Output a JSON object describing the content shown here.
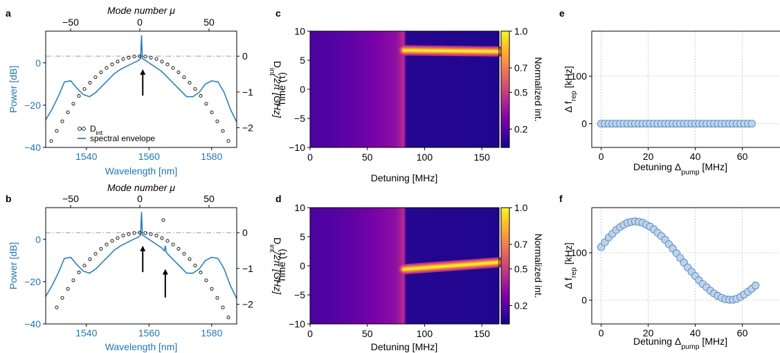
{
  "colors": {
    "accent": "#1f77b4",
    "envelope": "#2b7fb8",
    "dint": "#000000",
    "guide": "#b3b3b3",
    "marker_fill": "#bcd3ec",
    "marker_edge": "#4a7fb5",
    "grid": "#b0b0b0"
  },
  "panels": {
    "a": {
      "letter": "a"
    },
    "b": {
      "letter": "b"
    },
    "c": {
      "letter": "c"
    },
    "d": {
      "letter": "d"
    },
    "e": {
      "letter": "e"
    },
    "f": {
      "letter": "f"
    }
  },
  "chart_data": [
    {
      "id": "a",
      "type": "line",
      "xlabel": "Wavelength [nm]",
      "x2label": "Mode number μ",
      "ylabel": "Power [dB]",
      "y2label": "D_int/2π [GHz]",
      "xlim": [
        1527,
        1588
      ],
      "xticks": [
        1540,
        1560,
        1580
      ],
      "x2lim": [
        -68,
        70
      ],
      "x2ticks": [
        -50,
        0,
        50
      ],
      "ylim": [
        -40,
        15
      ],
      "yticks": [
        -40,
        -20,
        0
      ],
      "y2lim": [
        -2.55,
        0.7
      ],
      "y2ticks": [
        -2,
        -1,
        0
      ],
      "legend": {
        "placement": "lower-left",
        "entries": [
          "D_int",
          "spectral envelope"
        ]
      },
      "series": [
        {
          "name": "spectral envelope",
          "axis": "power",
          "x": [
            1527,
            1529,
            1531,
            1533,
            1535,
            1537,
            1539,
            1541,
            1543,
            1545,
            1547,
            1549,
            1551,
            1553,
            1555,
            1556.5,
            1557.3,
            1557.6,
            1557.9,
            1558.5,
            1560,
            1562,
            1564,
            1566,
            1568,
            1570,
            1572,
            1574,
            1576,
            1578,
            1580,
            1582,
            1584,
            1586,
            1588
          ],
          "y": [
            -27,
            -22,
            -16,
            -9,
            -8.5,
            -12,
            -15,
            -16,
            -14,
            -11,
            -8,
            -5,
            -3,
            -1.5,
            0,
            1,
            2,
            13,
            2,
            1.5,
            0,
            -2,
            -4,
            -7,
            -10,
            -13,
            -16,
            -16,
            -14,
            -10,
            -8.5,
            -9,
            -14,
            -22,
            -28
          ]
        },
        {
          "name": "D_int",
          "axis": "dint",
          "marker": "circle",
          "x": [
            -68,
            -64,
            -60,
            -56,
            -52,
            -48,
            -44,
            -40,
            -36,
            -32,
            -28,
            -24,
            -20,
            -16,
            -12,
            -8,
            -4,
            0,
            4,
            8,
            12,
            16,
            20,
            24,
            28,
            32,
            36,
            40,
            44,
            48,
            52,
            56,
            60,
            64,
            68
          ],
          "y": [
            -2.68,
            -2.37,
            -2.09,
            -1.82,
            -1.57,
            -1.33,
            -1.11,
            -0.92,
            -0.74,
            -0.59,
            -0.45,
            -0.33,
            -0.23,
            -0.15,
            -0.08,
            -0.04,
            -0.01,
            0.0,
            -0.01,
            -0.04,
            -0.08,
            -0.15,
            -0.23,
            -0.33,
            -0.45,
            -0.59,
            -0.74,
            -0.92,
            -1.11,
            -1.33,
            -1.57,
            -1.82,
            -2.09,
            -2.37,
            -2.68
          ]
        }
      ],
      "guide_dint": 0,
      "arrows_wavelength": [
        1558
      ]
    },
    {
      "id": "b",
      "type": "line",
      "xlabel": "Wavelength [nm]",
      "x2label": "Mode number μ",
      "ylabel": "Power [dB]",
      "y2label": "D_int/2π [GHz]",
      "xlim": [
        1527,
        1588
      ],
      "xticks": [
        1540,
        1560,
        1580
      ],
      "x2lim": [
        -68,
        70
      ],
      "x2ticks": [
        -50,
        0,
        50
      ],
      "ylim": [
        -40,
        15
      ],
      "yticks": [
        -40,
        -20,
        0
      ],
      "y2lim": [
        -2.55,
        0.7
      ],
      "y2ticks": [
        -2,
        -1,
        0
      ],
      "series": [
        {
          "name": "spectral envelope",
          "axis": "power",
          "x": [
            1527,
            1529,
            1531,
            1533,
            1535,
            1537,
            1539,
            1541,
            1543,
            1545,
            1547,
            1549,
            1551,
            1553,
            1555,
            1556.5,
            1557.3,
            1557.6,
            1557.9,
            1558.5,
            1560,
            1562,
            1564,
            1564.9,
            1565.2,
            1565.5,
            1566,
            1568,
            1570,
            1572,
            1574,
            1576,
            1578,
            1580,
            1582,
            1584,
            1586,
            1588
          ],
          "y": [
            -27,
            -22,
            -16,
            -9,
            -8.5,
            -12,
            -15,
            -16,
            -14,
            -11,
            -8,
            -5,
            -3,
            -1.5,
            0,
            1,
            2,
            13,
            2,
            1.5,
            0,
            -2,
            -4,
            -5.5,
            -3,
            -6,
            -7,
            -10,
            -13,
            -16,
            -16,
            -14,
            -10,
            -8.5,
            -9,
            -14,
            -22,
            -28
          ]
        },
        {
          "name": "D_int",
          "axis": "dint",
          "marker": "circle",
          "x": [
            -60,
            -56,
            -52,
            -48,
            -44,
            -40,
            -36,
            -32,
            -28,
            -24,
            -20,
            -16,
            -12,
            -8,
            -4,
            0,
            4,
            8,
            12,
            16,
            20,
            24,
            28,
            32,
            36,
            40,
            44,
            48,
            52,
            56,
            60,
            64
          ],
          "y": [
            -2.09,
            -1.82,
            -1.57,
            -1.33,
            -1.11,
            -0.92,
            -0.74,
            -0.59,
            -0.45,
            -0.33,
            -0.23,
            -0.15,
            -0.08,
            -0.04,
            -0.01,
            0.0,
            -0.01,
            -0.04,
            -0.08,
            -0.15,
            -0.23,
            -0.33,
            -0.45,
            -0.59,
            -0.74,
            -0.92,
            -1.11,
            -1.33,
            -1.57,
            -1.82,
            -2.09,
            -2.37
          ]
        }
      ],
      "outlier_dint": {
        "x": 17,
        "y": 0.35
      },
      "guide_dint": 0,
      "arrows_wavelength": [
        1558,
        1565.2
      ]
    },
    {
      "id": "c",
      "type": "heatmap",
      "xlabel": "Detuning [MHz]",
      "ylabel": "Time (τ)",
      "xlim": [
        0,
        165
      ],
      "xticks": [
        0,
        50,
        100,
        150
      ],
      "ylim": [
        -10,
        10
      ],
      "yticks": [
        -10,
        -5,
        0,
        5,
        10
      ],
      "colorbar": {
        "label": "Normalized int.",
        "ticks": [
          1.0,
          0.7,
          0.5,
          0.2
        ],
        "tick_labels": [
          "1.0",
          "0.7",
          "0.5",
          "0.2"
        ]
      },
      "background_profile": {
        "detuning": [
          0,
          20,
          40,
          60,
          75,
          82,
          84,
          165
        ],
        "level": [
          0.13,
          0.15,
          0.19,
          0.25,
          0.3,
          0.42,
          0.05,
          0.04
        ]
      },
      "soliton": {
        "start": 82,
        "end": 165,
        "time_start": 6.7,
        "time_end": 6.5,
        "width": 0.55
      }
    },
    {
      "id": "d",
      "type": "heatmap",
      "xlabel": "Detuning [MHz]",
      "ylabel": "Time (τ)",
      "xlim": [
        0,
        165
      ],
      "xticks": [
        0,
        50,
        100,
        150
      ],
      "ylim": [
        -10,
        10
      ],
      "yticks": [
        -10,
        -5,
        0,
        5,
        10
      ],
      "colorbar": {
        "label": "Normalized int.",
        "ticks": [
          1.0,
          0.7,
          0.5,
          0.2
        ],
        "tick_labels": [
          "1.0",
          "0.7",
          "0.5",
          "0.2"
        ]
      },
      "background_profile": {
        "detuning": [
          0,
          20,
          40,
          60,
          75,
          82,
          84,
          165
        ],
        "level": [
          0.13,
          0.15,
          0.19,
          0.25,
          0.3,
          0.42,
          0.05,
          0.04
        ]
      },
      "soliton": {
        "start": 82,
        "end": 165,
        "time_start": -0.6,
        "time_end": 0.6,
        "width": 0.55
      }
    },
    {
      "id": "e",
      "type": "scatter",
      "xlabel": "Detuning Δ_pump [MHz]",
      "ylabel": "Δ f_rep [kHz]",
      "xlim": [
        -4,
        76
      ],
      "xticks": [
        0,
        20,
        40,
        60
      ],
      "ylim": [
        -50,
        195
      ],
      "yticks": [
        0,
        100
      ],
      "grid": true,
      "x": [
        0,
        1.6,
        3.2,
        4.8,
        6.4,
        8.0,
        9.6,
        11.2,
        12.8,
        14.4,
        16.0,
        17.6,
        19.2,
        20.8,
        22.4,
        24.0,
        25.6,
        27.2,
        28.8,
        30.4,
        32.0,
        33.6,
        35.2,
        36.8,
        38.4,
        40.0,
        41.6,
        43.2,
        44.8,
        46.4,
        48.0,
        49.6,
        51.2,
        52.8,
        54.4,
        56.0,
        57.6,
        59.2,
        60.8,
        62.4,
        64.0
      ],
      "y": [
        0,
        0,
        0,
        0,
        0,
        0,
        0,
        0,
        0,
        0,
        0,
        0,
        0,
        0,
        0,
        0,
        0,
        0,
        0,
        0,
        0,
        0,
        0,
        0,
        0,
        0,
        0,
        0,
        0,
        0,
        0,
        0,
        0,
        0,
        0,
        0,
        0,
        0,
        0,
        0,
        0
      ]
    },
    {
      "id": "f",
      "type": "scatter",
      "xlabel": "Detuning Δ_pump [MHz]",
      "ylabel": "Δ f_rep [kHz]",
      "xlim": [
        -4,
        76
      ],
      "xticks": [
        0,
        20,
        40,
        60
      ],
      "ylim": [
        -50,
        195
      ],
      "yticks": [
        0,
        100
      ],
      "grid": true,
      "x": [
        0,
        1.6,
        3.2,
        4.8,
        6.4,
        8.0,
        9.6,
        11.2,
        12.8,
        14.4,
        16.0,
        17.6,
        19.2,
        20.8,
        22.4,
        24.0,
        25.6,
        27.2,
        28.8,
        30.4,
        32.0,
        33.6,
        35.2,
        36.8,
        38.4,
        40.0,
        41.6,
        43.2,
        44.8,
        46.4,
        48.0,
        49.6,
        51.2,
        52.8,
        54.4,
        56.0,
        57.6,
        59.2,
        60.8,
        62.4,
        64.0,
        65.6
      ],
      "y": [
        112,
        122,
        132,
        140,
        148,
        154,
        159,
        163,
        165,
        166,
        165,
        163,
        159,
        155,
        149,
        142,
        135,
        127,
        118,
        109,
        99,
        89,
        79,
        69,
        60,
        51,
        42,
        34,
        27,
        20,
        14,
        9,
        5,
        2,
        1,
        1,
        3,
        7,
        12,
        18,
        24,
        31
      ]
    }
  ]
}
